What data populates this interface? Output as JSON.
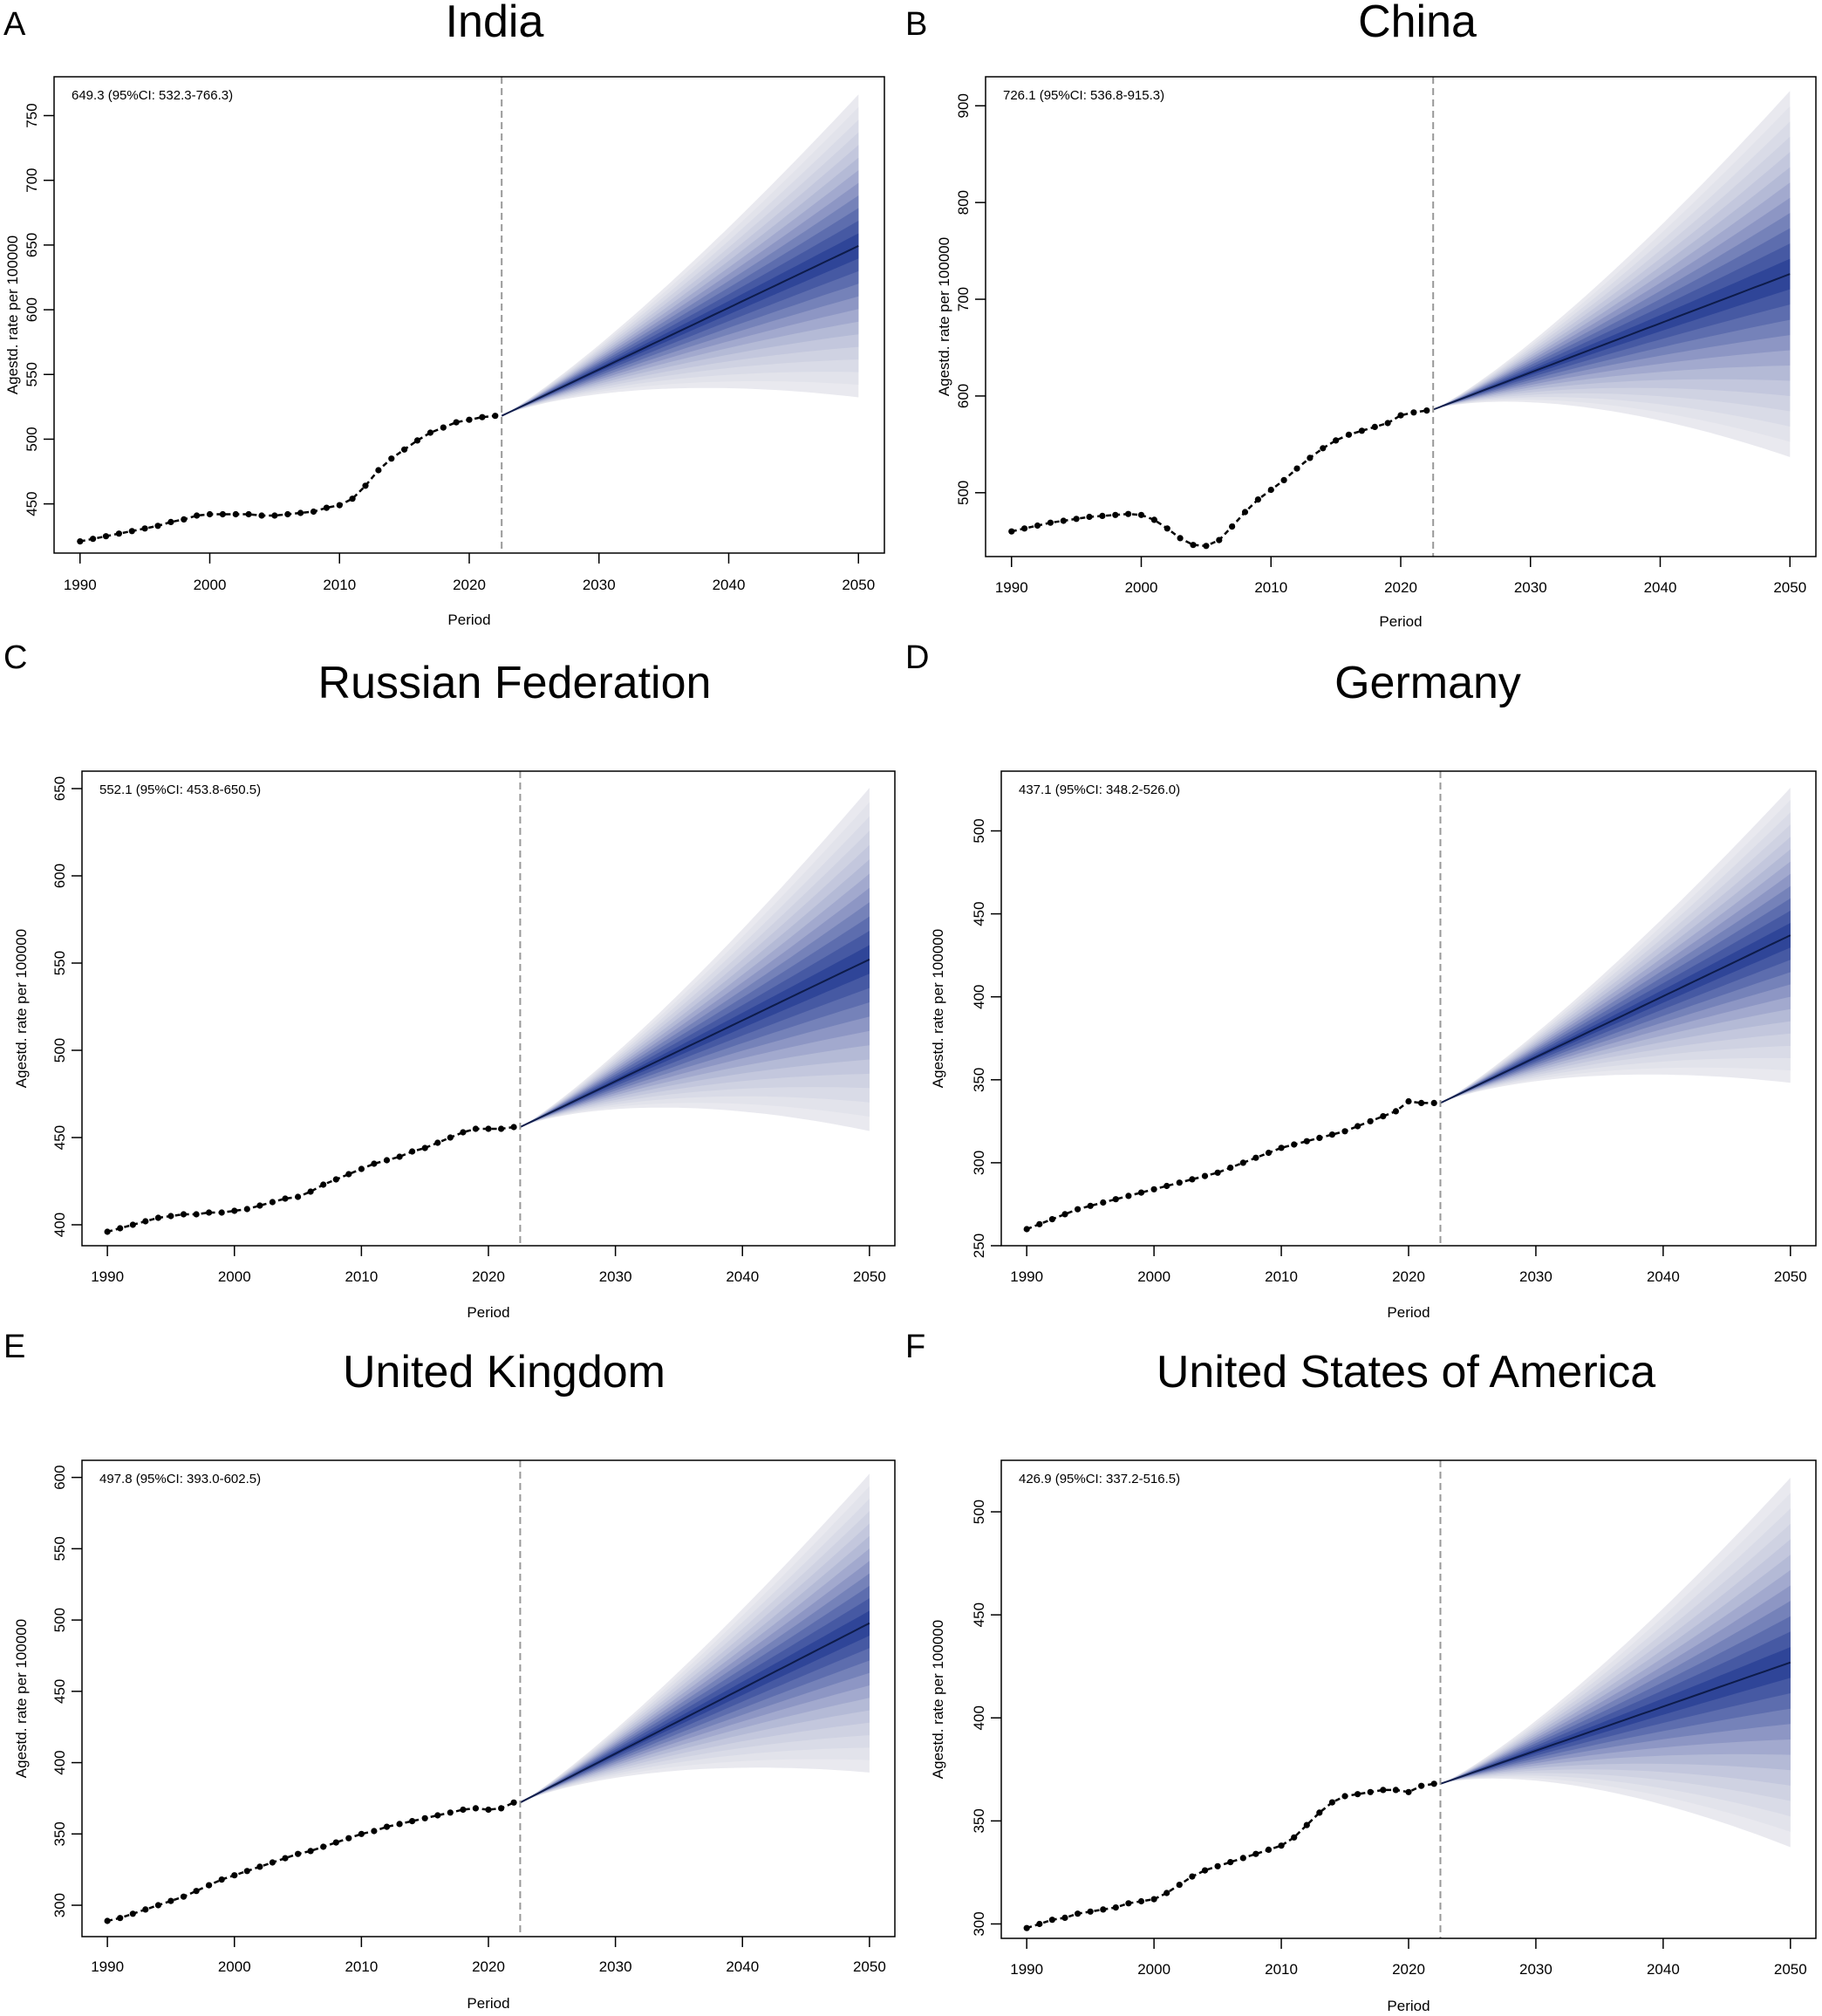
{
  "chart_data": [
    {
      "panel_letter": "A",
      "type": "line",
      "title": "India",
      "xlabel": "Period",
      "ylabel": "Agestd. rate per 100000",
      "annotation": "649.3 (95%CI: 532.3-766.3)",
      "xlim": [
        1988,
        2052
      ],
      "ylim": [
        412,
        780
      ],
      "xticks": [
        1990,
        2000,
        2010,
        2020,
        2030,
        2040,
        2050
      ],
      "yticks": [
        450,
        500,
        550,
        600,
        650,
        700,
        750
      ],
      "vline_x": 2022.5,
      "observed": {
        "x": [
          1990,
          1991,
          1992,
          1993,
          1994,
          1995,
          1996,
          1997,
          1998,
          1999,
          2000,
          2001,
          2002,
          2003,
          2004,
          2005,
          2006,
          2007,
          2008,
          2009,
          2010,
          2011,
          2012,
          2013,
          2014,
          2015,
          2016,
          2017,
          2018,
          2019,
          2020,
          2021,
          2022
        ],
        "y": [
          421,
          423,
          425,
          427,
          429,
          431,
          433,
          436,
          438,
          441,
          442,
          442,
          442,
          442,
          441,
          441,
          442,
          443,
          444,
          447,
          449,
          454,
          464,
          476,
          485,
          492,
          499,
          505,
          509,
          513,
          515,
          517,
          518
        ]
      },
      "forecast": {
        "start_year": 2022.5,
        "start_value": 518,
        "end_year": 2050,
        "end_value": 649.3,
        "ci_lower": 532.3,
        "ci_upper": 766.3
      },
      "band_colors": [
        "#e9e9ef",
        "#e2e3eb",
        "#d9dbe7",
        "#cfd2e2",
        "#c3c7dd",
        "#b4bad6",
        "#a2a9ce",
        "#8d96c4",
        "#7582b9",
        "#5d6dae",
        "#4659a3",
        "#2f4598"
      ],
      "center_line_color": "#0d1b4a",
      "observed_color": "#000000",
      "vline_color": "#999999",
      "grid": false
    },
    {
      "panel_letter": "B",
      "type": "line",
      "title": "China",
      "xlabel": "Period",
      "ylabel": "Agestd. rate per 100000",
      "annotation": "726.1 (95%CI: 536.8-915.3)",
      "xlim": [
        1988,
        2052
      ],
      "ylim": [
        434,
        930
      ],
      "xticks": [
        1990,
        2000,
        2010,
        2020,
        2030,
        2040,
        2050
      ],
      "yticks": [
        500,
        600,
        700,
        800,
        900
      ],
      "vline_x": 2022.5,
      "observed": {
        "x": [
          1990,
          1991,
          1992,
          1993,
          1994,
          1995,
          1996,
          1997,
          1998,
          1999,
          2000,
          2001,
          2002,
          2003,
          2004,
          2005,
          2006,
          2007,
          2008,
          2009,
          2010,
          2011,
          2012,
          2013,
          2014,
          2015,
          2016,
          2017,
          2018,
          2019,
          2020,
          2021,
          2022
        ],
        "y": [
          460,
          463,
          466,
          469,
          471,
          473,
          475,
          476,
          477,
          478,
          477,
          472,
          463,
          453,
          446,
          445,
          451,
          465,
          480,
          493,
          503,
          513,
          525,
          536,
          546,
          554,
          560,
          564,
          568,
          572,
          580,
          583,
          585
        ]
      },
      "forecast": {
        "start_year": 2022.5,
        "start_value": 586,
        "end_year": 2050,
        "end_value": 726.1,
        "ci_lower": 536.8,
        "ci_upper": 915.3
      },
      "band_colors": [
        "#e9e9ef",
        "#e2e3eb",
        "#d9dbe7",
        "#cfd2e2",
        "#c3c7dd",
        "#b4bad6",
        "#a2a9ce",
        "#8d96c4",
        "#7582b9",
        "#5d6dae",
        "#4659a3",
        "#2f4598"
      ],
      "center_line_color": "#0d1b4a",
      "observed_color": "#000000",
      "vline_color": "#999999",
      "grid": false
    },
    {
      "panel_letter": "C",
      "type": "line",
      "title": "Russian Federation",
      "xlabel": "Period",
      "ylabel": "Agestd. rate per 100000",
      "annotation": "552.1 (95%CI: 453.8-650.5)",
      "xlim": [
        1988,
        2052
      ],
      "ylim": [
        388,
        660
      ],
      "xticks": [
        1990,
        2000,
        2010,
        2020,
        2030,
        2040,
        2050
      ],
      "yticks": [
        400,
        450,
        500,
        550,
        600,
        650
      ],
      "vline_x": 2022.5,
      "observed": {
        "x": [
          1990,
          1991,
          1992,
          1993,
          1994,
          1995,
          1996,
          1997,
          1998,
          1999,
          2000,
          2001,
          2002,
          2003,
          2004,
          2005,
          2006,
          2007,
          2008,
          2009,
          2010,
          2011,
          2012,
          2013,
          2014,
          2015,
          2016,
          2017,
          2018,
          2019,
          2020,
          2021,
          2022
        ],
        "y": [
          396,
          398,
          400,
          402,
          404,
          405,
          406,
          406,
          407,
          407,
          408,
          409,
          411,
          413,
          415,
          416,
          419,
          423,
          426,
          429,
          432,
          435,
          437,
          439,
          442,
          444,
          447,
          450,
          453,
          455,
          455,
          455,
          456
        ]
      },
      "forecast": {
        "start_year": 2022.5,
        "start_value": 456,
        "end_year": 2050,
        "end_value": 552.1,
        "ci_lower": 453.8,
        "ci_upper": 650.5
      },
      "band_colors": [
        "#e9e9ef",
        "#e2e3eb",
        "#d9dbe7",
        "#cfd2e2",
        "#c3c7dd",
        "#b4bad6",
        "#a2a9ce",
        "#8d96c4",
        "#7582b9",
        "#5d6dae",
        "#4659a3",
        "#2f4598"
      ],
      "center_line_color": "#0d1b4a",
      "observed_color": "#000000",
      "vline_color": "#999999",
      "grid": false
    },
    {
      "panel_letter": "D",
      "type": "line",
      "title": "Germany",
      "xlabel": "Period",
      "ylabel": "Agestd. rate per 100000",
      "annotation": "437.1 (95%CI: 348.2-526.0)",
      "xlim": [
        1988,
        2052
      ],
      "ylim": [
        250,
        536
      ],
      "xticks": [
        1990,
        2000,
        2010,
        2020,
        2030,
        2040,
        2050
      ],
      "yticks": [
        250,
        300,
        350,
        400,
        450,
        500
      ],
      "vline_x": 2022.5,
      "observed": {
        "x": [
          1990,
          1991,
          1992,
          1993,
          1994,
          1995,
          1996,
          1997,
          1998,
          1999,
          2000,
          2001,
          2002,
          2003,
          2004,
          2005,
          2006,
          2007,
          2008,
          2009,
          2010,
          2011,
          2012,
          2013,
          2014,
          2015,
          2016,
          2017,
          2018,
          2019,
          2020,
          2021,
          2022
        ],
        "y": [
          260,
          263,
          266,
          269,
          272,
          274,
          276,
          278,
          280,
          282,
          284,
          286,
          288,
          290,
          292,
          294,
          297,
          300,
          303,
          306,
          309,
          311,
          313,
          315,
          317,
          319,
          322,
          325,
          328,
          331,
          337,
          336,
          336
        ]
      },
      "forecast": {
        "start_year": 2022.5,
        "start_value": 336,
        "end_year": 2050,
        "end_value": 437.1,
        "ci_lower": 348.2,
        "ci_upper": 526.0
      },
      "band_colors": [
        "#e9e9ef",
        "#e2e3eb",
        "#d9dbe7",
        "#cfd2e2",
        "#c3c7dd",
        "#b4bad6",
        "#a2a9ce",
        "#8d96c4",
        "#7582b9",
        "#5d6dae",
        "#4659a3",
        "#2f4598"
      ],
      "center_line_color": "#0d1b4a",
      "observed_color": "#000000",
      "vline_color": "#999999",
      "grid": false
    },
    {
      "panel_letter": "E",
      "type": "line",
      "title": "United Kingdom",
      "xlabel": "Period",
      "ylabel": "Agestd. rate per 100000",
      "annotation": "497.8 (95%CI: 393.0-602.5)",
      "xlim": [
        1988,
        2052
      ],
      "ylim": [
        278,
        612
      ],
      "xticks": [
        1990,
        2000,
        2010,
        2020,
        2030,
        2040,
        2050
      ],
      "yticks": [
        300,
        350,
        400,
        450,
        500,
        550,
        600
      ],
      "vline_x": 2022.5,
      "observed": {
        "x": [
          1990,
          1991,
          1992,
          1993,
          1994,
          1995,
          1996,
          1997,
          1998,
          1999,
          2000,
          2001,
          2002,
          2003,
          2004,
          2005,
          2006,
          2007,
          2008,
          2009,
          2010,
          2011,
          2012,
          2013,
          2014,
          2015,
          2016,
          2017,
          2018,
          2019,
          2020,
          2021,
          2022
        ],
        "y": [
          289,
          291,
          294,
          297,
          300,
          303,
          306,
          310,
          314,
          318,
          321,
          324,
          327,
          330,
          333,
          336,
          338,
          341,
          344,
          347,
          350,
          352,
          355,
          357,
          359,
          361,
          363,
          365,
          367,
          368,
          367,
          368,
          372
        ]
      },
      "forecast": {
        "start_year": 2022.5,
        "start_value": 372,
        "end_year": 2050,
        "end_value": 497.8,
        "ci_lower": 393.0,
        "ci_upper": 602.5
      },
      "band_colors": [
        "#e9e9ef",
        "#e2e3eb",
        "#d9dbe7",
        "#cfd2e2",
        "#c3c7dd",
        "#b4bad6",
        "#a2a9ce",
        "#8d96c4",
        "#7582b9",
        "#5d6dae",
        "#4659a3",
        "#2f4598"
      ],
      "center_line_color": "#0d1b4a",
      "observed_color": "#000000",
      "vline_color": "#999999",
      "grid": false
    },
    {
      "panel_letter": "F",
      "type": "line",
      "title": "United States of America",
      "xlabel": "Period",
      "ylabel": "Agestd. rate per 100000",
      "annotation": "426.9 (95%CI: 337.2-516.5)",
      "xlim": [
        1988,
        2052
      ],
      "ylim": [
        293,
        525
      ],
      "xticks": [
        1990,
        2000,
        2010,
        2020,
        2030,
        2040,
        2050
      ],
      "yticks": [
        300,
        350,
        400,
        450,
        500
      ],
      "vline_x": 2022.5,
      "observed": {
        "x": [
          1990,
          1991,
          1992,
          1993,
          1994,
          1995,
          1996,
          1997,
          1998,
          1999,
          2000,
          2001,
          2002,
          2003,
          2004,
          2005,
          2006,
          2007,
          2008,
          2009,
          2010,
          2011,
          2012,
          2013,
          2014,
          2015,
          2016,
          2017,
          2018,
          2019,
          2020,
          2021,
          2022
        ],
        "y": [
          298,
          300,
          302,
          303,
          305,
          306,
          307,
          308,
          310,
          311,
          312,
          315,
          319,
          323,
          326,
          328,
          330,
          332,
          334,
          336,
          338,
          342,
          348,
          354,
          359,
          362,
          363,
          364,
          365,
          365,
          364,
          367,
          368
        ]
      },
      "forecast": {
        "start_year": 2022.5,
        "start_value": 368,
        "end_year": 2050,
        "end_value": 426.9,
        "ci_lower": 337.2,
        "ci_upper": 516.5
      },
      "band_colors": [
        "#e9e9ef",
        "#e2e3eb",
        "#d9dbe7",
        "#cfd2e2",
        "#c3c7dd",
        "#b4bad6",
        "#a2a9ce",
        "#8d96c4",
        "#7582b9",
        "#5d6dae",
        "#4659a3",
        "#2f4598"
      ],
      "center_line_color": "#0d1b4a",
      "observed_color": "#000000",
      "vline_color": "#999999",
      "grid": false
    }
  ]
}
